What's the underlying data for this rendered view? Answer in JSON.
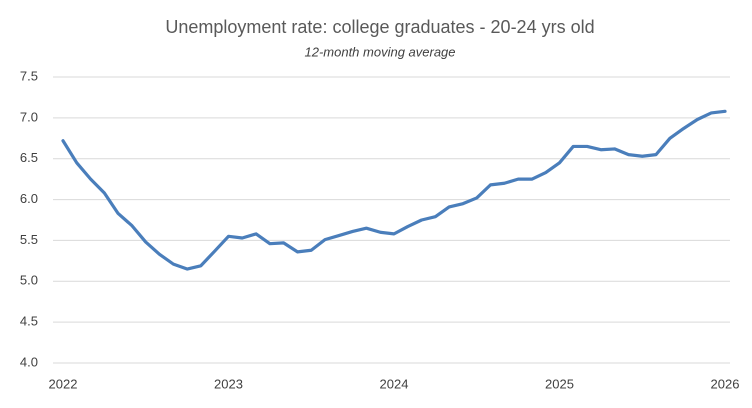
{
  "chart_data": {
    "type": "line",
    "title": "Unemployment  rate: college graduates - 20-24 yrs old",
    "subtitle": "12-month moving average",
    "x": [
      2022,
      2022.083,
      2022.167,
      2022.25,
      2022.333,
      2022.417,
      2022.5,
      2022.583,
      2022.667,
      2022.75,
      2022.833,
      2022.917,
      2023,
      2023.083,
      2023.167,
      2023.25,
      2023.333,
      2023.417,
      2023.5,
      2023.583,
      2023.667,
      2023.75,
      2023.833,
      2023.917,
      2024,
      2024.083,
      2024.167,
      2024.25,
      2024.333,
      2024.417,
      2024.5,
      2024.583,
      2024.667,
      2024.75,
      2024.833,
      2024.917,
      2025,
      2025.083,
      2025.167,
      2025.25,
      2025.333,
      2025.417,
      2025.5,
      2025.583,
      2025.667,
      2025.75,
      2025.833,
      2025.917,
      2026
    ],
    "series": [
      {
        "name": "Unemployment rate",
        "color": "#4a7ebb",
        "values": [
          6.72,
          6.45,
          6.25,
          6.08,
          5.83,
          5.68,
          5.48,
          5.33,
          5.21,
          5.15,
          5.19,
          5.37,
          5.55,
          5.53,
          5.58,
          5.46,
          5.47,
          5.36,
          5.38,
          5.51,
          5.56,
          5.61,
          5.65,
          5.6,
          5.58,
          5.67,
          5.75,
          5.79,
          5.91,
          5.95,
          6.02,
          6.18,
          6.2,
          6.25,
          6.25,
          6.33,
          6.45,
          6.65,
          6.65,
          6.61,
          6.62,
          6.55,
          6.53,
          6.55,
          6.75,
          6.87,
          6.98,
          7.06,
          7.08
        ]
      }
    ],
    "xlim": [
      2022,
      2026
    ],
    "xticks": [
      2022,
      2023,
      2024,
      2025,
      2026
    ],
    "ylim": [
      4,
      7.5
    ],
    "yticks": [
      {
        "value": 4,
        "label": "4.0"
      },
      4.5,
      {
        "value": 5,
        "label": "5.0"
      },
      5.5,
      {
        "value": 6,
        "label": "6.0"
      },
      6.5,
      {
        "value": 7,
        "label": "7.0"
      },
      7.5
    ],
    "grid": true
  }
}
